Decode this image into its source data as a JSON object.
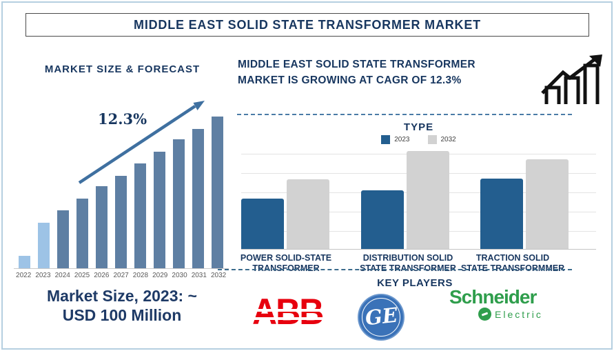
{
  "header": {
    "title": "MIDDLE EAST SOLID STATE TRANSFORMER MARKET"
  },
  "left_panel": {
    "heading": "MARKET SIZE & FORECAST",
    "cagr_label": "12.3%",
    "market_size_line1": "Market Size, 2023: ~",
    "market_size_line2": "USD 100 Million"
  },
  "right_panel": {
    "headline_line1": "MIDDLE EAST SOLID STATE TRANSFORMER",
    "headline_line2": "MARKET IS GROWING AT CAGR OF 12.3%",
    "type_heading": "TYPE",
    "key_players_heading": "KEY PLAYERS",
    "key_players": [
      {
        "name": "ABB",
        "logo_text": "ABB",
        "brand_color": "#e7000e"
      },
      {
        "name": "GE",
        "logo_text": "GE",
        "brand_color": "#3a72b8"
      },
      {
        "name": "Schneider Electric",
        "logo_line1": "Schneider",
        "logo_line2": "Electric",
        "brand_color": "#2f9e4c"
      }
    ]
  },
  "chart_data": [
    {
      "type": "bar",
      "title": "MARKET SIZE & FORECAST",
      "categories": [
        "2022",
        "2023",
        "2024",
        "2025",
        "2026",
        "2027",
        "2028",
        "2029",
        "2030",
        "2031",
        "2032"
      ],
      "values": [
        8,
        30,
        38,
        46,
        54,
        61,
        69,
        77,
        85,
        92,
        100
      ],
      "values_unit": "relative height, % of 2032 bar (2023 = ~USD 100 Million)",
      "highlight_categories": [
        "2022",
        "2023"
      ],
      "annotation": "12.3%",
      "xlabel": "",
      "ylabel": "",
      "grid": false,
      "legend": false
    },
    {
      "type": "bar",
      "title": "TYPE",
      "categories": [
        "POWER SOLID-STATE TRANSFORMER",
        "DISTRIBUTION SOLID STATE TRANSFORMER",
        "TRACTION SOLID STATE TRANSFORMMER"
      ],
      "categories_lines": [
        [
          "POWER SOLID-STATE",
          "TRANSFORMER"
        ],
        [
          "DISTRIBUTION SOLID",
          "STATE TRANSFORMER"
        ],
        [
          "TRACTION SOLID",
          "STATE TRANSFORMMER"
        ]
      ],
      "series": [
        {
          "name": "2023",
          "values": [
            100,
            116,
            140
          ]
        },
        {
          "name": "2032",
          "values": [
            138,
            195,
            178
          ]
        }
      ],
      "values_unit": "relative index, Power 2023 = 100",
      "legend_position": "top",
      "grid": true
    }
  ],
  "colors": {
    "navy_text": "#17365f",
    "bar_dark": "#5e7fa3",
    "bar_light": "#9dc3e6",
    "arrow_blue": "#3f70a0",
    "type_bar_2023": "#235e8f",
    "type_bar_2032": "#d2d2d2",
    "dashed_line": "#4a7ba6",
    "abb_red": "#e7000e",
    "ge_blue": "#3a72b8",
    "schneider_green": "#2f9e4c",
    "frame_blue": "#b5cfe0"
  }
}
